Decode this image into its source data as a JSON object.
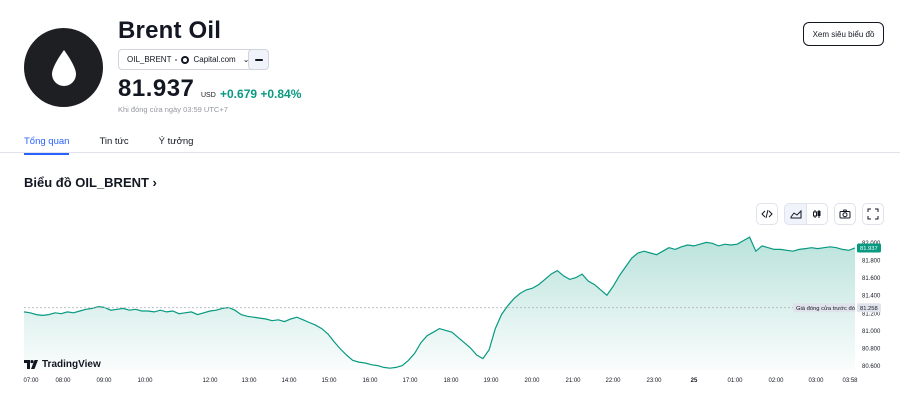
{
  "header": {
    "title": "Brent Oil",
    "symbol": "OIL_BRENT",
    "source": "Capital.com",
    "price": "81.937",
    "currency": "USD",
    "change": "+0.679 +0.84%",
    "status": "Khi đóng cửa ngày 03:59 UTC+7",
    "cta_label": "Xem siêu biểu đồ"
  },
  "tabs": [
    {
      "label": "Tổng quan",
      "active": true
    },
    {
      "label": "Tin tức",
      "active": false
    },
    {
      "label": "Ý tưởng",
      "active": false
    }
  ],
  "section_title": "Biểu đồ OIL_BRENT ›",
  "toolbar": {
    "icons": [
      "embed-code-icon",
      "area-chart-icon",
      "candlestick-icon",
      "camera-icon",
      "fullscreen-icon"
    ]
  },
  "brand": "TradingView",
  "colors": {
    "accent": "#2962ff",
    "up": "#089981",
    "area_fill": "#089981"
  },
  "chart_data": {
    "type": "area",
    "x_ticks": [
      "07:00",
      "08:00",
      "09:00",
      "10:00",
      "12:00",
      "13:00",
      "14:00",
      "15:00",
      "16:00",
      "17:00",
      "18:00",
      "19:00",
      "20:00",
      "21:00",
      "22:00",
      "23:00",
      "25",
      "01:00",
      "02:00",
      "03:00",
      "03:58"
    ],
    "y_ticks": [
      "82.000",
      "81.800",
      "81.600",
      "81.400",
      "81.200",
      "81.000",
      "80.800",
      "80.600"
    ],
    "ylim": [
      80.55,
      82.05
    ],
    "last_value_label": "81.937",
    "prev_close": 81.258,
    "prev_close_label": "Giá đóng cửa trước đó",
    "prev_close_value_label": "81.258",
    "series": [
      {
        "values": [
          81.21,
          81.2,
          81.18,
          81.17,
          81.18,
          81.2,
          81.19,
          81.21,
          81.2,
          81.22,
          81.24,
          81.25,
          81.27,
          81.26,
          81.23,
          81.24,
          81.25,
          81.23,
          81.24,
          81.22,
          81.22,
          81.21,
          81.23,
          81.21,
          81.22,
          81.19,
          81.2,
          81.21,
          81.18,
          81.2,
          81.22,
          81.23,
          81.25,
          81.26,
          81.23,
          81.18,
          81.16,
          81.15,
          81.14,
          81.13,
          81.11,
          81.12,
          81.1,
          81.13,
          81.15,
          81.12,
          81.09,
          81.06,
          81.02,
          80.96,
          80.87,
          80.79,
          80.72,
          80.66,
          80.64,
          80.63,
          80.61,
          80.6,
          80.58,
          80.57,
          80.58,
          80.6,
          80.66,
          80.74,
          80.86,
          80.94,
          80.98,
          81.02,
          81.0,
          80.98,
          80.92,
          80.86,
          80.8,
          80.72,
          80.68,
          80.78,
          81.02,
          81.18,
          81.28,
          81.36,
          81.42,
          81.46,
          81.48,
          81.52,
          81.58,
          81.64,
          81.68,
          81.62,
          81.58,
          81.6,
          81.64,
          81.56,
          81.52,
          81.46,
          81.4,
          81.5,
          81.62,
          81.72,
          81.82,
          81.88,
          81.9,
          81.88,
          81.86,
          81.9,
          81.94,
          81.92,
          81.95,
          81.97,
          81.96,
          81.98,
          82.0,
          81.99,
          81.96,
          81.98,
          81.97,
          81.98,
          82.02,
          82.06,
          81.9,
          81.96,
          81.94,
          81.92,
          81.92,
          81.91,
          81.9,
          81.92,
          81.93,
          81.94,
          81.93,
          81.94,
          81.95,
          81.94,
          81.92,
          81.91,
          81.937
        ]
      }
    ]
  }
}
